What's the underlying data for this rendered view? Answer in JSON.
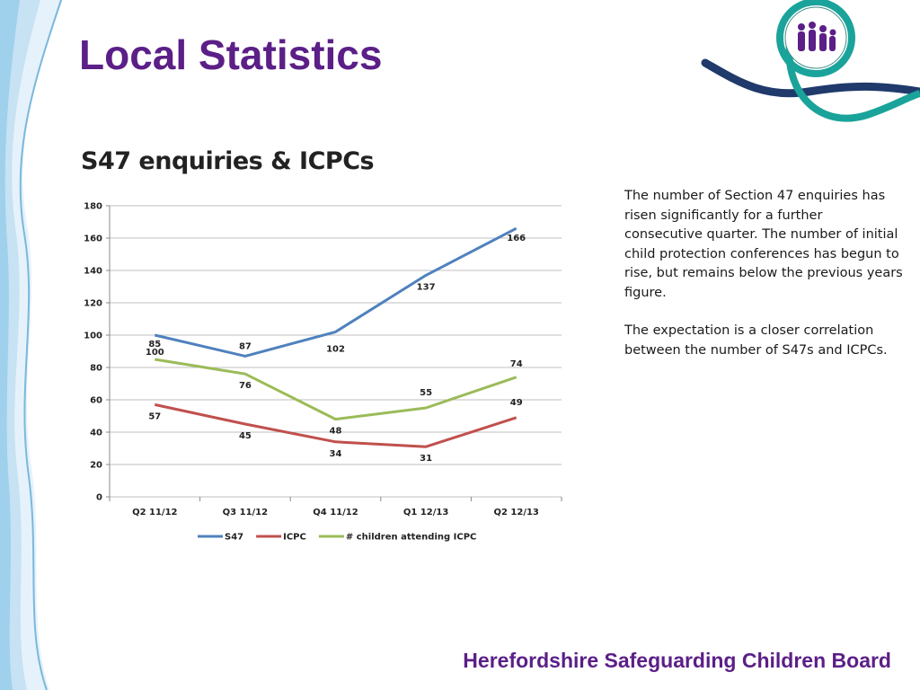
{
  "slide": {
    "title": "Local Statistics",
    "footer": "Herefordshire Safeguarding Children Board",
    "notes": [
      "The number of Section 47 enquiries has risen significantly for a further consecutive quarter. The number of initial child protection conferences has begun to rise, but remains below the previous years figure.",
      "The expectation is a closer correlation between the number of S47s and ICPCs."
    ],
    "colors": {
      "accent": "#5b1f87",
      "teal": "#1aa39a",
      "navy": "#1f3a6b"
    },
    "icons": [
      "safeguarding-board-logo",
      "decorative-ribbon"
    ]
  },
  "chart_data": {
    "type": "line",
    "title": "S47 enquiries & ICPCs",
    "categories": [
      "Q2 11/12",
      "Q3 11/12",
      "Q4 11/12",
      "Q1 12/13",
      "Q2 12/13"
    ],
    "ylim": [
      0,
      180
    ],
    "yticks": [
      0,
      20,
      40,
      60,
      80,
      100,
      120,
      140,
      160,
      180
    ],
    "grid": true,
    "legend": "bottom",
    "series": [
      {
        "name": "S47",
        "color": "#4f81bd",
        "values": [
          100,
          87,
          102,
          137,
          166
        ]
      },
      {
        "name": "ICPC",
        "color": "#c0504d",
        "values": [
          57,
          45,
          34,
          31,
          49
        ]
      },
      {
        "name": "# children attending ICPC",
        "color": "#9bbb59",
        "values": [
          85,
          76,
          48,
          55,
          74
        ]
      }
    ]
  }
}
